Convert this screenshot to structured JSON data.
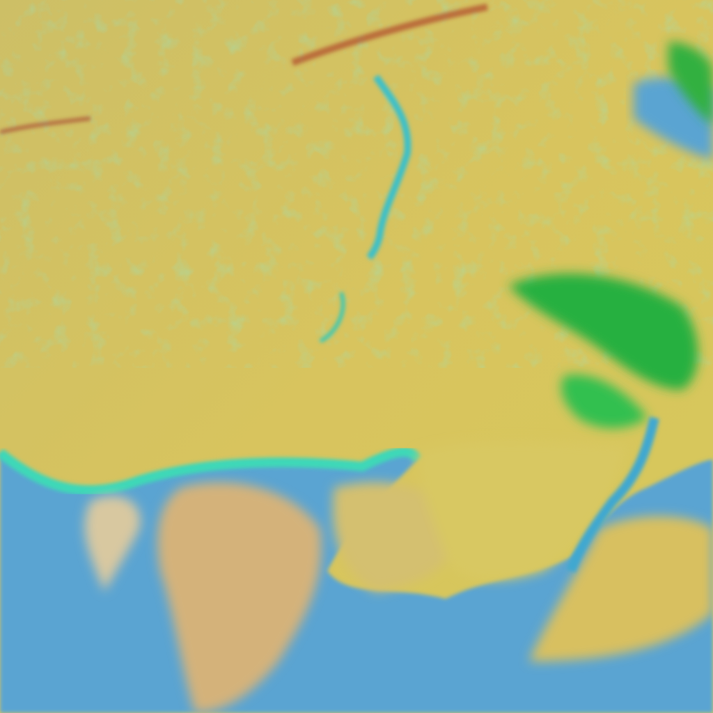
{
  "colors": {
    "cloud_yellow": "#d6c660",
    "cloud_tan": "#d4b070",
    "water_blue": "#5aa4d2",
    "water_cyan": "#3cc8c0",
    "edge_green": "#38d8a0",
    "vegetation_green": "#28b040",
    "streak_red": "#b04a2a"
  }
}
